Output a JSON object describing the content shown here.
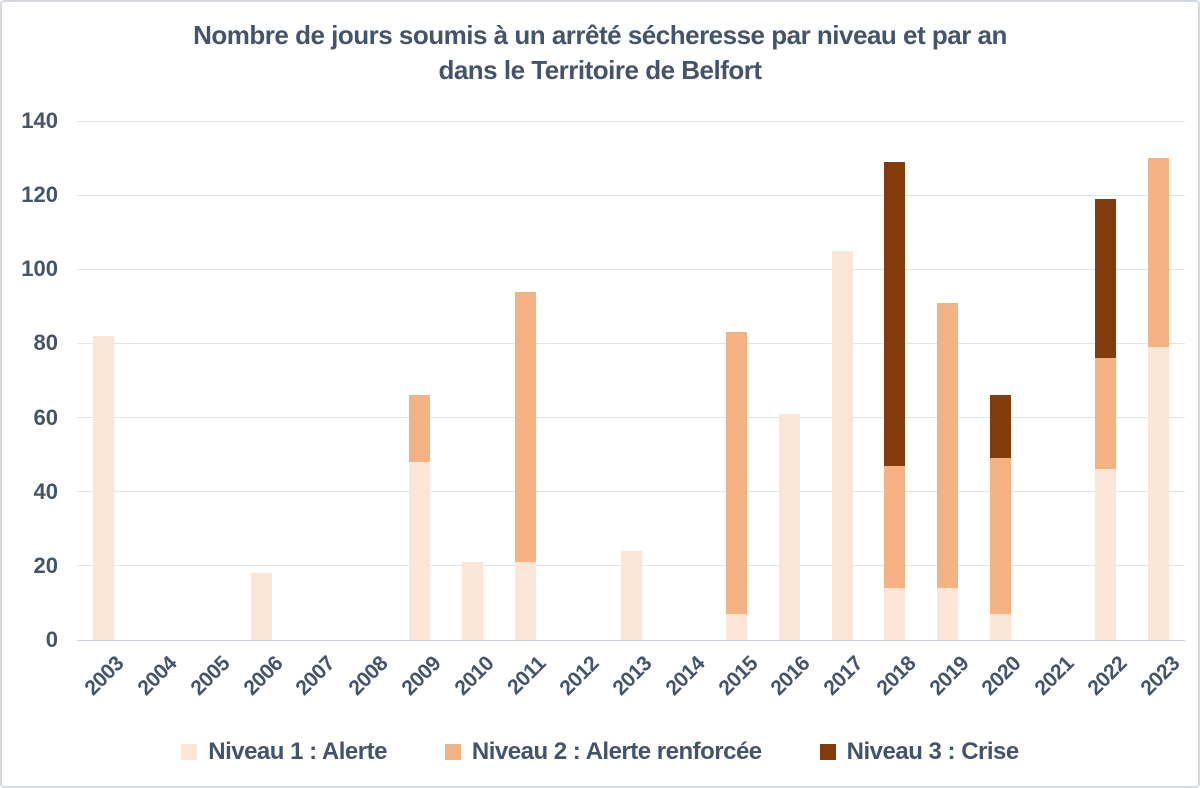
{
  "title": {
    "line1": "Nombre de jours soumis à un arrêté sécheresse par niveau et par an",
    "line2": "dans le Territoire de Belfort"
  },
  "colors": {
    "text": "#44546A",
    "gridline": "#E0E4EB",
    "zero_line": "#CDD3DD",
    "background": "#FFFFFF",
    "frame_border": "#D5D9E0",
    "niveau1": "#FBE5D6",
    "niveau2": "#F4B183",
    "niveau3": "#843C0C"
  },
  "chart_data": {
    "type": "bar",
    "stacked": true,
    "grid": true,
    "legend_position": "bottom",
    "title": "Nombre de jours soumis à un arrêté sécheresse par niveau et par an dans le Territoire de Belfort",
    "xlabel": "",
    "ylabel": "",
    "ylim": [
      0,
      140
    ],
    "ytick_step": 20,
    "yticks": [
      "0",
      "20",
      "40",
      "60",
      "80",
      "100",
      "120",
      "140"
    ],
    "categories": [
      "2003",
      "2004",
      "2005",
      "2006",
      "2007",
      "2008",
      "2009",
      "2010",
      "2011",
      "2012",
      "2013",
      "2014",
      "2015",
      "2016",
      "2017",
      "2018",
      "2019",
      "2020",
      "2021",
      "2022",
      "2023"
    ],
    "series": [
      {
        "name": "Niveau 1 : Alerte",
        "color": "#FBE5D6",
        "values": [
          82,
          0,
          0,
          18,
          0,
          0,
          48,
          21,
          21,
          0,
          24,
          0,
          7,
          61,
          105,
          14,
          14,
          7,
          0,
          46,
          79
        ]
      },
      {
        "name": "Niveau 2 : Alerte renforcée",
        "color": "#F4B183",
        "values": [
          0,
          0,
          0,
          0,
          0,
          0,
          18,
          0,
          73,
          0,
          0,
          0,
          76,
          0,
          0,
          33,
          77,
          42,
          0,
          30,
          51
        ]
      },
      {
        "name": "Niveau 3 : Crise",
        "color": "#843C0C",
        "values": [
          0,
          0,
          0,
          0,
          0,
          0,
          0,
          0,
          0,
          0,
          0,
          0,
          0,
          0,
          0,
          82,
          0,
          17,
          0,
          43,
          0
        ]
      }
    ],
    "totals": [
      82,
      0,
      0,
      18,
      0,
      0,
      66,
      21,
      94,
      0,
      24,
      0,
      83,
      61,
      105,
      129,
      91,
      66,
      0,
      119,
      130
    ]
  }
}
